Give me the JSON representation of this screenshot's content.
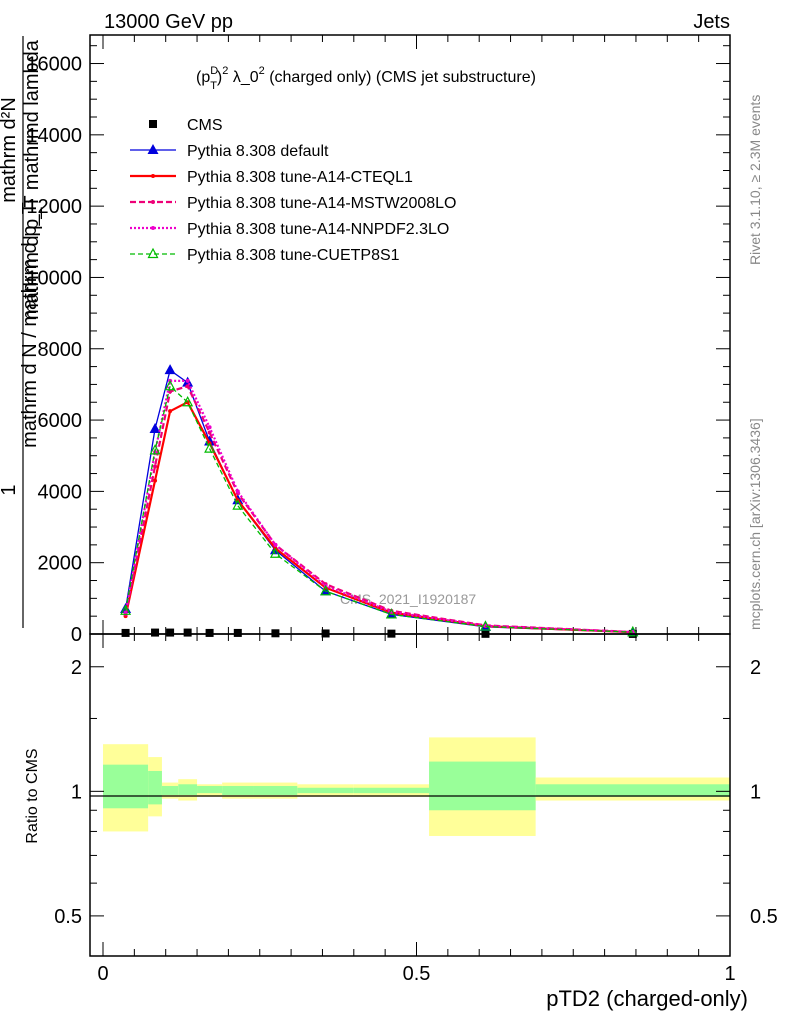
{
  "header": {
    "left": "13000 GeV pp",
    "right": "Jets"
  },
  "side_text": {
    "rivet": "Rivet 3.1.10, ≥ 2.3M events",
    "mcplots": "mcplots.cern.ch [arXiv:1306.3436]"
  },
  "watermark": "CMS_2021_I1920187",
  "colors": {
    "cms": "#000000",
    "default": "#0000dd",
    "cteql1": "#ff0000",
    "mstw": "#ee0077",
    "nnpdf": "#ee00cc",
    "cuetp": "#00bb00",
    "band_outer": "#ffff99",
    "band_inner": "#99ff99"
  },
  "chart_data": [
    {
      "type": "line",
      "title": "(p_T^D)^2 λ_0^2 (charged only) (CMS jet substructure)",
      "title_parts": {
        "p": "(p",
        "sup_D": "D",
        "sub_T": "T",
        "close": ")",
        "sup2a": "2",
        "lambda": " λ_0",
        "sup2b": "2",
        "rest": " (charged only) (CMS jet substructure)"
      },
      "ylabel_parts": {
        "num": "mathrm d²N",
        "den": "mathrm d p_T mathrmd lambda",
        "pre_num": "1",
        "pre_den": "mathrm d N / mathrm d p_T"
      },
      "xlim": [
        0,
        1
      ],
      "ylim": [
        0,
        16800
      ],
      "y_ticks": [
        0,
        2000,
        4000,
        6000,
        8000,
        10000,
        12000,
        14000,
        16000
      ],
      "y_tick_labels": [
        "0",
        "2000",
        "4000",
        "6000",
        "8000",
        "10000",
        "12000",
        "14000",
        "16000"
      ],
      "legend_position": "top-left",
      "series": [
        {
          "name": "CMS",
          "style": "data",
          "x": [
            0.036,
            0.083,
            0.107,
            0.135,
            0.17,
            0.215,
            0.275,
            0.355,
            0.46,
            0.61,
            0.845
          ],
          "values": [
            30,
            40,
            40,
            40,
            30,
            30,
            20,
            15,
            10,
            5,
            2
          ]
        },
        {
          "name": "Pythia 8.308 default",
          "style": "default",
          "x": [
            0.036,
            0.083,
            0.107,
            0.135,
            0.17,
            0.215,
            0.275,
            0.355,
            0.46,
            0.61,
            0.845
          ],
          "values": [
            700,
            5750,
            7400,
            7050,
            5400,
            3750,
            2350,
            1200,
            550,
            200,
            50
          ]
        },
        {
          "name": "Pythia 8.308 tune-A14-CTEQL1",
          "style": "cteql1",
          "x": [
            0.036,
            0.083,
            0.107,
            0.135,
            0.17,
            0.215,
            0.275,
            0.355,
            0.46,
            0.61,
            0.845
          ],
          "values": [
            500,
            4300,
            6250,
            6500,
            5350,
            3750,
            2400,
            1300,
            600,
            220,
            50
          ]
        },
        {
          "name": "Pythia 8.308 tune-A14-MSTW2008LO",
          "style": "mstw",
          "x": [
            0.036,
            0.083,
            0.107,
            0.135,
            0.17,
            0.215,
            0.275,
            0.355,
            0.46,
            0.61,
            0.845
          ],
          "values": [
            550,
            4700,
            6800,
            6950,
            5650,
            3950,
            2500,
            1400,
            650,
            240,
            55
          ]
        },
        {
          "name": "Pythia 8.308 tune-A14-NNPDF2.3LO",
          "style": "nnpdf",
          "x": [
            0.036,
            0.083,
            0.107,
            0.135,
            0.17,
            0.215,
            0.275,
            0.355,
            0.46,
            0.61,
            0.845
          ],
          "values": [
            600,
            5100,
            7100,
            7100,
            5800,
            4000,
            2500,
            1350,
            620,
            230,
            55
          ]
        },
        {
          "name": "Pythia 8.308 tune-CUETP8S1",
          "style": "cuetp",
          "x": [
            0.036,
            0.083,
            0.107,
            0.135,
            0.17,
            0.215,
            0.275,
            0.355,
            0.46,
            0.61,
            0.845
          ],
          "values": [
            650,
            5150,
            6950,
            6500,
            5200,
            3600,
            2250,
            1200,
            550,
            210,
            50
          ]
        }
      ]
    },
    {
      "type": "area",
      "ylabel": "Ratio to CMS",
      "xlabel": "pTD2 (charged-only)",
      "xlim": [
        0,
        1
      ],
      "ylim": [
        0.4,
        2.4
      ],
      "y_scale": "log",
      "y_ticks": [
        0.5,
        1,
        2
      ],
      "y_tick_labels": [
        "0.5",
        "1",
        "2"
      ],
      "x_ticks": [
        0,
        0.5,
        1
      ],
      "x_tick_labels": [
        "0",
        "0.5",
        "1"
      ],
      "bins": [
        0,
        0.072,
        0.094,
        0.12,
        0.15,
        0.19,
        0.24,
        0.31,
        0.4,
        0.52,
        0.69,
        1.0
      ],
      "outer_band": [
        [
          0.8,
          1.3
        ],
        [
          0.87,
          1.21
        ],
        [
          0.96,
          1.05
        ],
        [
          0.95,
          1.07
        ],
        [
          0.97,
          1.04
        ],
        [
          0.96,
          1.05
        ],
        [
          0.96,
          1.05
        ],
        [
          0.97,
          1.04
        ],
        [
          0.97,
          1.04
        ],
        [
          0.78,
          1.35
        ],
        [
          0.95,
          1.08
        ]
      ],
      "inner_band": [
        [
          0.91,
          1.16
        ],
        [
          0.93,
          1.12
        ],
        [
          0.98,
          1.03
        ],
        [
          0.98,
          1.04
        ],
        [
          0.99,
          1.03
        ],
        [
          0.98,
          1.03
        ],
        [
          0.98,
          1.03
        ],
        [
          0.99,
          1.02
        ],
        [
          0.99,
          1.02
        ],
        [
          0.9,
          1.18
        ],
        [
          0.97,
          1.04
        ]
      ]
    }
  ]
}
